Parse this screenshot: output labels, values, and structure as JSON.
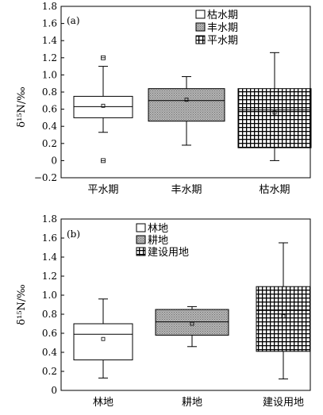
{
  "chart_data": [
    {
      "type": "box",
      "panel_label": "(a)",
      "ylabel": "δ¹⁵N/‰",
      "ylim": [
        -0.2,
        1.8
      ],
      "yticks": [
        "−0.2",
        "0",
        "0.2",
        "0.4",
        "0.6",
        "0.8",
        "1.0",
        "1.2",
        "1.4",
        "1.6",
        "1.8"
      ],
      "ytick_values": [
        -0.2,
        0,
        0.2,
        0.4,
        0.6,
        0.8,
        1.0,
        1.2,
        1.4,
        1.6,
        1.8
      ],
      "legend": [
        "枯水期",
        "丰水期",
        "平水期"
      ],
      "legend_placement": "top-right",
      "categories": [
        "平水期",
        "丰水期",
        "枯水期"
      ],
      "boxes": [
        {
          "category": "平水期",
          "pattern": "white",
          "whisker_low": 0.33,
          "q1": 0.5,
          "median": 0.63,
          "q3": 0.75,
          "whisker_high": 1.1,
          "mean": 0.64,
          "outliers": [
            0.0,
            1.2
          ]
        },
        {
          "category": "丰水期",
          "pattern": "gray",
          "whisker_low": 0.18,
          "q1": 0.46,
          "median": 0.7,
          "q3": 0.84,
          "whisker_high": 0.98,
          "mean": 0.71,
          "outliers": []
        },
        {
          "category": "枯水期",
          "pattern": "grid",
          "whisker_low": 0.0,
          "q1": 0.15,
          "median": 0.59,
          "q3": 0.84,
          "whisker_high": 1.26,
          "mean": 0.56,
          "outliers": []
        }
      ]
    },
    {
      "type": "box",
      "panel_label": "(b)",
      "ylabel": "δ¹⁵N/‰",
      "ylim": [
        0,
        1.8
      ],
      "yticks": [
        "0",
        "0.2",
        "0.4",
        "0.6",
        "0.8",
        "1.0",
        "1.2",
        "1.4",
        "1.6",
        "1.8"
      ],
      "ytick_values": [
        0,
        0.2,
        0.4,
        0.6,
        0.8,
        1.0,
        1.2,
        1.4,
        1.6,
        1.8
      ],
      "legend": [
        "林地",
        "耕地",
        "建设用地"
      ],
      "legend_placement": "top-left",
      "categories": [
        "林地",
        "耕地",
        "建设用地"
      ],
      "boxes": [
        {
          "category": "林地",
          "pattern": "white",
          "whisker_low": 0.13,
          "q1": 0.32,
          "median": 0.59,
          "q3": 0.7,
          "whisker_high": 0.96,
          "mean": 0.54,
          "outliers": []
        },
        {
          "category": "耕地",
          "pattern": "gray",
          "whisker_low": 0.46,
          "q1": 0.58,
          "median": 0.72,
          "q3": 0.85,
          "whisker_high": 0.88,
          "mean": 0.7,
          "outliers": []
        },
        {
          "category": "建设用地",
          "pattern": "grid",
          "whisker_low": 0.12,
          "q1": 0.41,
          "median": 0.84,
          "q3": 1.09,
          "whisker_high": 1.55,
          "mean": 0.78,
          "outliers": []
        }
      ]
    }
  ]
}
